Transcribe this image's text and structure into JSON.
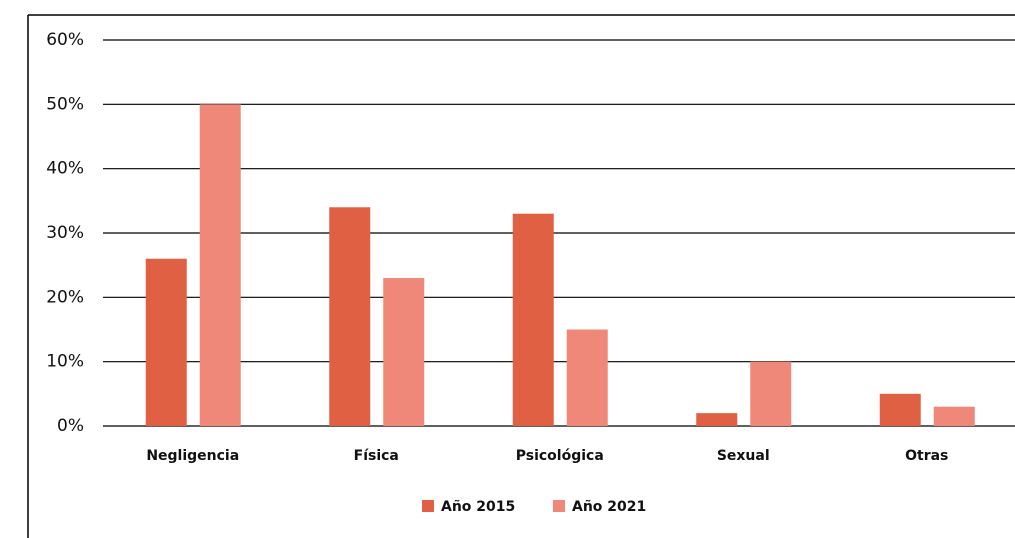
{
  "chart_data": {
    "type": "bar",
    "categories": [
      "Negligencia",
      "Física",
      "Psicológica",
      "Sexual",
      "Otras"
    ],
    "series": [
      {
        "name": "Año 2015",
        "color": "#e06044",
        "values": [
          26,
          34,
          33,
          2,
          5
        ]
      },
      {
        "name": "Año 2021",
        "color": "#f0887a",
        "values": [
          50,
          23,
          15,
          10,
          3
        ]
      }
    ],
    "ylim": [
      0,
      60
    ],
    "yticks": [
      {
        "value": 0,
        "label": "0%"
      },
      {
        "value": 10,
        "label": "10%"
      },
      {
        "value": 20,
        "label": "20%"
      },
      {
        "value": 30,
        "label": "30%"
      },
      {
        "value": 40,
        "label": "40%"
      },
      {
        "value": 50,
        "label": "50%"
      },
      {
        "value": 60,
        "label": "60%"
      }
    ],
    "grid": true,
    "legend": "bottom"
  }
}
